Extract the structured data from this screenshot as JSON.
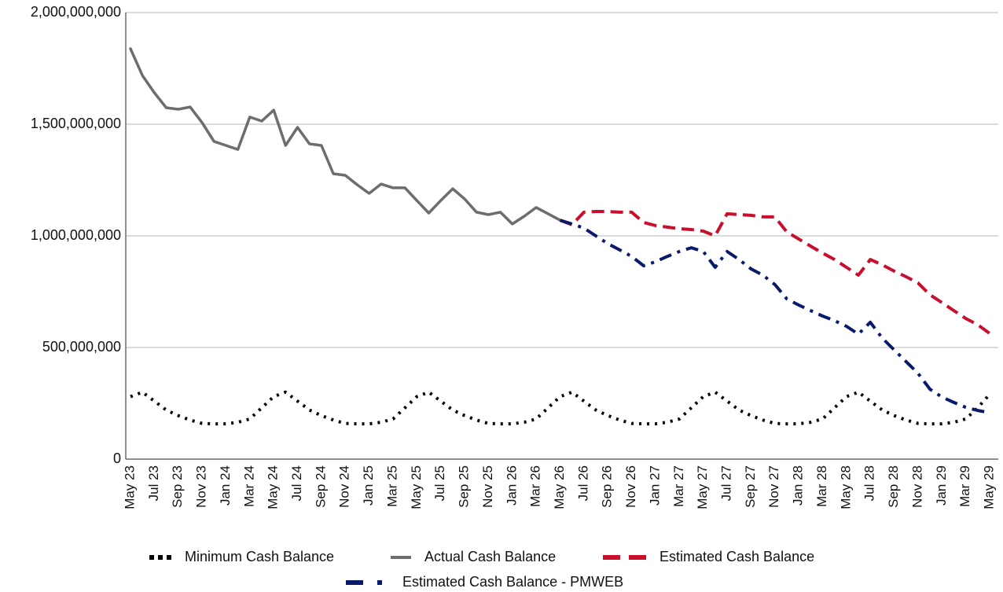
{
  "chart_data": {
    "type": "line",
    "categories": [
      "May 23",
      null,
      "Jul 23",
      null,
      "Sep 23",
      null,
      "Nov 23",
      null,
      "Jan 24",
      null,
      "Mar 24",
      null,
      "May 24",
      null,
      "Jul 24",
      null,
      "Sep 24",
      null,
      "Nov 24",
      null,
      "Jan 25",
      null,
      "Mar 25",
      null,
      "May 25",
      null,
      "Jul 25",
      null,
      "Sep 25",
      null,
      "Nov 25",
      null,
      "Jan 26",
      null,
      "Mar 26",
      null,
      "May 26",
      null,
      "Jul 26",
      null,
      "Sep 26",
      null,
      "Nov 26",
      null,
      "Jan 27",
      null,
      "Mar 27",
      null,
      "May 27",
      null,
      "Jul 27",
      null,
      "Sep 27",
      null,
      "Nov 27",
      null,
      "Jan 28",
      null,
      "Mar 28",
      null,
      "May 28",
      null,
      "Jul 28",
      null,
      "Sep 28",
      null,
      "Nov 28",
      null,
      "Jan 29",
      null,
      "Mar 29",
      null,
      "May 29"
    ],
    "series": [
      {
        "name": "Minimum Cash Balance",
        "color": "#000000",
        "dash": "dotted",
        "values": [
          280000000,
          300000000,
          260000000,
          220000000,
          195000000,
          175000000,
          160000000,
          158000000,
          158000000,
          165000000,
          180000000,
          230000000,
          280000000,
          300000000,
          260000000,
          220000000,
          195000000,
          175000000,
          160000000,
          158000000,
          158000000,
          165000000,
          180000000,
          230000000,
          280000000,
          300000000,
          260000000,
          220000000,
          195000000,
          175000000,
          160000000,
          158000000,
          158000000,
          165000000,
          180000000,
          230000000,
          280000000,
          300000000,
          260000000,
          220000000,
          195000000,
          175000000,
          160000000,
          158000000,
          158000000,
          165000000,
          180000000,
          230000000,
          280000000,
          300000000,
          260000000,
          220000000,
          195000000,
          175000000,
          160000000,
          158000000,
          158000000,
          165000000,
          180000000,
          230000000,
          280000000,
          300000000,
          260000000,
          220000000,
          195000000,
          175000000,
          160000000,
          158000000,
          158000000,
          165000000,
          180000000,
          230000000,
          290000000
        ]
      },
      {
        "name": "Actual Cash Balance",
        "color": "#6d6d6d",
        "dash": "solid",
        "values": [
          1838000000,
          1718000000,
          1641000000,
          1574000000,
          1567000000,
          1577000000,
          1507000000,
          1423000000,
          1405000000,
          1387000000,
          1532000000,
          1514000000,
          1563000000,
          1405000000,
          1486000000,
          1412000000,
          1405000000,
          1278000000,
          1271000000,
          1229000000,
          1190000000,
          1232000000,
          1215000000,
          1215000000,
          1158000000,
          1102000000,
          1158000000,
          1211000000,
          1165000000,
          1106000000,
          1095000000,
          1106000000,
          1053000000,
          1088000000,
          1127000000,
          1099000000,
          1070000000,
          null,
          null,
          null,
          null,
          null,
          null,
          null,
          null,
          null,
          null,
          null,
          null,
          null,
          null,
          null,
          null,
          null,
          null,
          null,
          null,
          null,
          null,
          null,
          null,
          null,
          null,
          null,
          null,
          null,
          null,
          null,
          null,
          null,
          null,
          null,
          null
        ]
      },
      {
        "name": "Estimated Cash Balance",
        "color": "#c8102e",
        "dash": "dashed",
        "values": [
          null,
          null,
          null,
          null,
          null,
          null,
          null,
          null,
          null,
          null,
          null,
          null,
          null,
          null,
          null,
          null,
          null,
          null,
          null,
          null,
          null,
          null,
          null,
          null,
          null,
          null,
          null,
          null,
          null,
          null,
          null,
          null,
          null,
          null,
          null,
          null,
          1070000000,
          1050000000,
          1106000000,
          1109000000,
          1109000000,
          1106000000,
          1106000000,
          1060000000,
          1046000000,
          1039000000,
          1032000000,
          1028000000,
          1021000000,
          1000000000,
          1099000000,
          1095000000,
          1092000000,
          1085000000,
          1085000000,
          1018000000,
          986000000,
          954000000,
          923000000,
          894000000,
          859000000,
          824000000,
          894000000,
          870000000,
          842000000,
          817000000,
          789000000,
          736000000,
          701000000,
          665000000,
          630000000,
          602000000,
          563000000
        ]
      },
      {
        "name": "Estimated Cash Balance - PMWEB",
        "color": "#0a1a6b",
        "dash": "dashdot",
        "values": [
          null,
          null,
          null,
          null,
          null,
          null,
          null,
          null,
          null,
          null,
          null,
          null,
          null,
          null,
          null,
          null,
          null,
          null,
          null,
          null,
          null,
          null,
          null,
          null,
          null,
          null,
          null,
          null,
          null,
          null,
          null,
          null,
          null,
          null,
          null,
          null,
          1070000000,
          1053000000,
          1035000000,
          1000000000,
          965000000,
          937000000,
          908000000,
          866000000,
          884000000,
          908000000,
          930000000,
          947000000,
          930000000,
          859000000,
          930000000,
          894000000,
          852000000,
          824000000,
          782000000,
          718000000,
          690000000,
          665000000,
          641000000,
          620000000,
          595000000,
          560000000,
          613000000,
          542000000,
          489000000,
          437000000,
          384000000,
          313000000,
          278000000,
          254000000,
          232000000,
          218000000,
          208000000
        ]
      }
    ],
    "ylim": [
      0,
      2000000000
    ],
    "yticks": [
      0,
      {
        "value": 500000000,
        "label": "500,000,000"
      },
      {
        "value": 1000000000,
        "label": "1,000,000,000"
      },
      {
        "value": 1500000000,
        "label": "1,500,000,000"
      },
      {
        "value": 2000000000,
        "label": "2,000,000,000"
      }
    ],
    "grid": true,
    "legend": "bottom"
  }
}
